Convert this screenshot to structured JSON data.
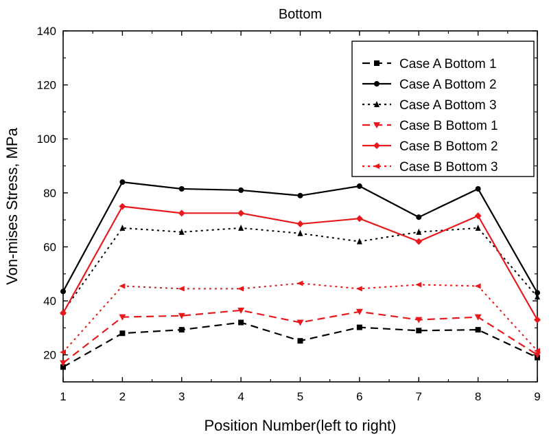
{
  "chart_data": {
    "type": "line",
    "title": "Bottom",
    "xlabel": "Position Number(left to right)",
    "ylabel": "Von-mises Stress, MPa",
    "xlim": [
      1,
      9
    ],
    "ylim": [
      10,
      140
    ],
    "x": [
      1,
      2,
      3,
      4,
      5,
      6,
      7,
      8,
      9
    ],
    "x_ticks": [
      "1",
      "2",
      "3",
      "4",
      "5",
      "6",
      "7",
      "8",
      "9"
    ],
    "y_ticks": [
      20,
      40,
      60,
      80,
      100,
      120,
      140
    ],
    "y_tick_labels": [
      "20",
      "40",
      "60",
      "80",
      "100",
      "120",
      "140"
    ],
    "grid": false,
    "legend_position": "top-right",
    "series": [
      {
        "name": "Case A Bottom 1",
        "color": "#000000",
        "dash": "dash",
        "marker": "square",
        "values": [
          15.5,
          28,
          29.3,
          32,
          25.2,
          30.2,
          29,
          29.3,
          19
        ]
      },
      {
        "name": "Case A Bottom 2",
        "color": "#000000",
        "dash": "solid",
        "marker": "circle",
        "values": [
          43.5,
          84,
          81.5,
          81,
          79,
          82.5,
          71,
          81.5,
          43
        ]
      },
      {
        "name": "Case A Bottom 3",
        "color": "#000000",
        "dash": "dot",
        "marker": "triangle-up",
        "values": [
          36,
          67,
          65.5,
          67,
          65,
          62,
          65.5,
          67,
          41.5
        ]
      },
      {
        "name": "Case B Bottom 1",
        "color": "#e8191c",
        "dash": "dash",
        "marker": "triangle-down",
        "values": [
          17,
          34,
          34.5,
          36.5,
          32,
          36,
          33,
          34,
          20
        ]
      },
      {
        "name": "Case B Bottom 2",
        "color": "#e8191c",
        "dash": "solid",
        "marker": "diamond",
        "values": [
          35.5,
          75,
          72.5,
          72.5,
          68.5,
          70.5,
          62,
          71.5,
          33
        ]
      },
      {
        "name": "Case B Bottom 3",
        "color": "#e8191c",
        "dash": "dot",
        "marker": "triangle-left",
        "values": [
          21,
          45.5,
          44.5,
          44.5,
          46.5,
          44.5,
          46,
          45.5,
          21.5
        ]
      }
    ]
  }
}
